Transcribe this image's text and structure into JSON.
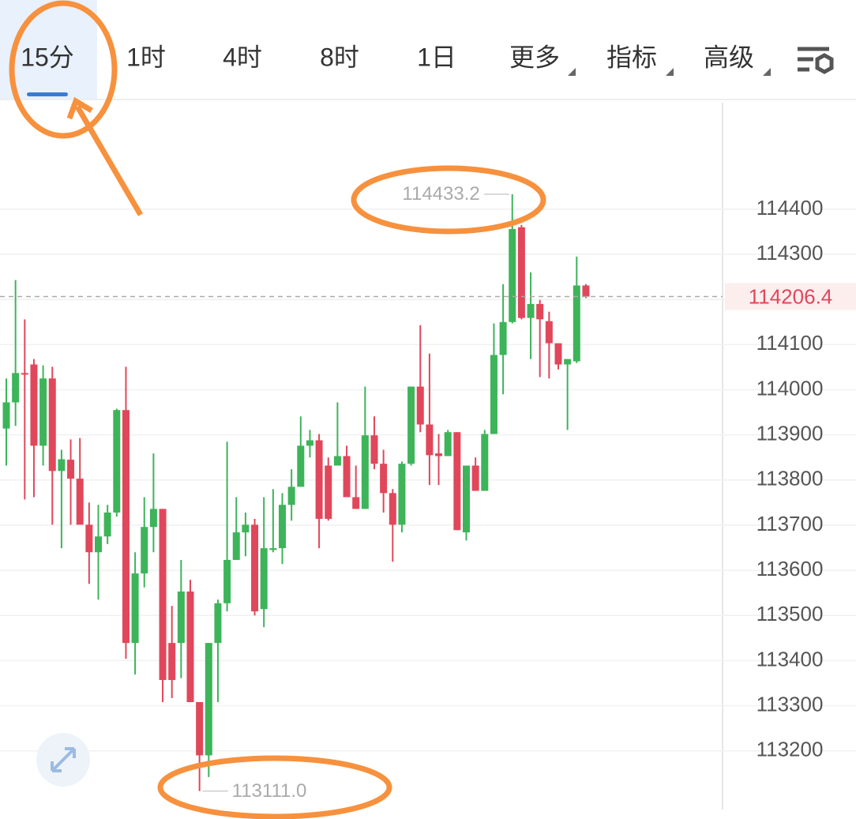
{
  "tabs": [
    "15分",
    "1时",
    "4时",
    "8时",
    "1日",
    "更多",
    "指标",
    "高级"
  ],
  "active_tab": 0,
  "chart_data": {
    "type": "candlestick",
    "up_color": "#3db45a",
    "down_color": "#e0475b",
    "ylim": [
      113070,
      114636
    ],
    "yticks": [
      113200,
      113300,
      113400,
      113500,
      113600,
      113700,
      113800,
      113900,
      114000,
      114100,
      114200,
      114300,
      114400
    ],
    "grid": true,
    "open": [
      113914,
      113972,
      114037,
      114056,
      113876,
      114025,
      113820,
      113845,
      113803,
      113701,
      113640,
      113675,
      113728,
      113955,
      113439,
      113593,
      113696,
      113736,
      113439,
      113439,
      113553,
      113308,
      113190,
      113439,
      113527,
      113623,
      113684,
      113701,
      113514,
      113645,
      113649,
      113745,
      113785,
      113876,
      113888,
      113832,
      113832,
      113853,
      113762,
      113736,
      113899,
      113836,
      113771,
      113701,
      113836,
      114007,
      113923,
      113859,
      113853,
      113906,
      113684,
      113832,
      113776,
      113902,
      114077,
      114150,
      114360,
      114159,
      114190,
      114152,
      114103,
      114056,
      114063,
      114231
    ],
    "high": [
      114025,
      114243,
      114156,
      114068,
      114054,
      114051,
      113867,
      113890,
      113893,
      113750,
      113745,
      113745,
      113958,
      114051,
      113640,
      113762,
      113859,
      113736,
      113521,
      113623,
      113579,
      113308,
      113439,
      113535,
      113885,
      113762,
      113728,
      113714,
      113762,
      113780,
      113771,
      113824,
      113941,
      113911,
      113902,
      113850,
      113972,
      113876,
      113832,
      114007,
      113941,
      113867,
      113780,
      113841,
      114007,
      114143,
      114080,
      113902,
      113911,
      113906,
      113832,
      113850,
      113911,
      114147,
      114234,
      114433.2,
      114365,
      114260,
      114199,
      114173,
      114103,
      114068,
      114295,
      114234
    ],
    "low": [
      113832,
      113920,
      113757,
      113762,
      113832,
      113701,
      113649,
      113701,
      113701,
      113570,
      113535,
      113658,
      113719,
      113404,
      113369,
      113562,
      113640,
      113308,
      113317,
      113361,
      113308,
      113111,
      113142,
      113308,
      113509,
      113623,
      113631,
      113500,
      113474,
      113640,
      113614,
      113710,
      113785,
      113850,
      113649,
      113710,
      113832,
      113762,
      113736,
      113736,
      113824,
      113728,
      113619,
      113684,
      113832,
      113906,
      113789,
      113789,
      113853,
      113689,
      113666,
      113776,
      113776,
      113902,
      113990,
      114147,
      114156,
      114068,
      114028,
      114025,
      114045,
      113911,
      114059,
      114203
    ],
    "close": [
      113972,
      114037,
      114035,
      113876,
      114025,
      113820,
      113846,
      113803,
      113701,
      113640,
      113675,
      113728,
      113955,
      113439,
      113593,
      113696,
      113736,
      113357,
      113357,
      113553,
      113308,
      113190,
      113439,
      113527,
      113623,
      113684,
      113701,
      113509,
      113649,
      113649,
      113745,
      113785,
      113876,
      113888,
      113714,
      113714,
      113853,
      113762,
      113736,
      113899,
      113836,
      113771,
      113701,
      113836,
      114007,
      113923,
      113855,
      113853,
      113906,
      113689,
      113832,
      113776,
      113902,
      114077,
      114150,
      114356,
      114159,
      114190,
      114156,
      114103,
      114056,
      114068,
      114231,
      114206.4
    ],
    "high_label": {
      "value": 114433.2,
      "label": "114433.2"
    },
    "low_label": {
      "value": 113111.0,
      "label": "113111.0"
    },
    "last_price": {
      "value": 114206.4,
      "label": "114206.4"
    }
  }
}
